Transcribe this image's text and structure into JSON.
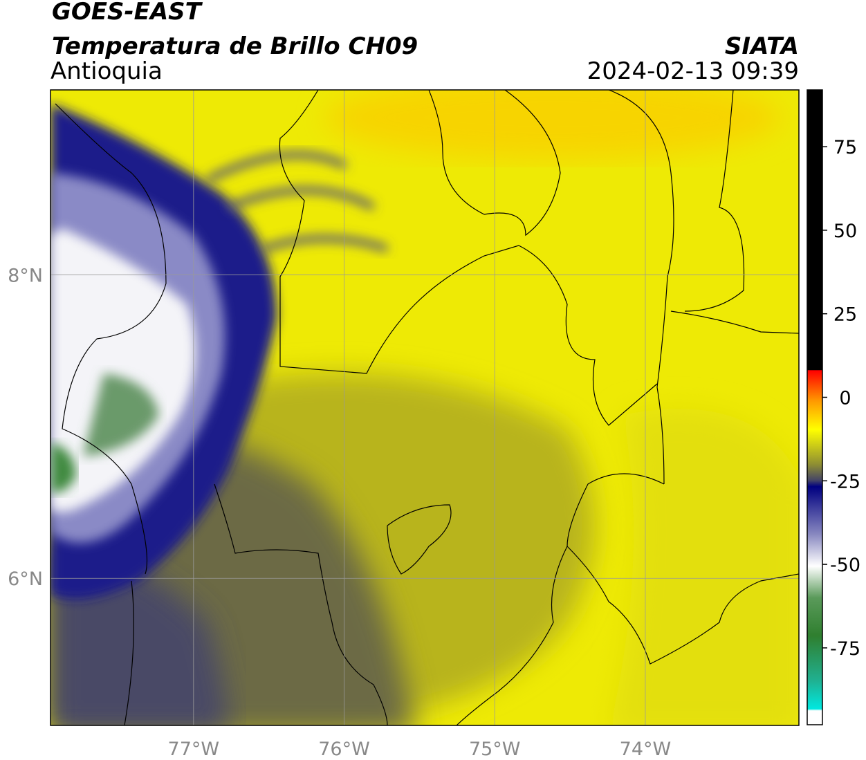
{
  "header": {
    "title": "GOES-EAST",
    "subtitle": "Temperatura de Brillo CH09",
    "source": "SIATA",
    "region": "Antioquia",
    "datetime": "2024-02-13 09:39"
  },
  "map": {
    "xlim": [
      -77.95,
      -72.98
    ],
    "ylim": [
      5.03,
      9.22
    ],
    "xticks": [
      {
        "value": -77,
        "label": "77°W"
      },
      {
        "value": -76,
        "label": "76°W"
      },
      {
        "value": -75,
        "label": "75°W"
      },
      {
        "value": -74,
        "label": "74°W"
      }
    ],
    "yticks": [
      {
        "value": 6,
        "label": "6°N"
      },
      {
        "value": 8,
        "label": "8°N"
      }
    ],
    "grid": true
  },
  "colorbar": {
    "range": [
      -98,
      92
    ],
    "ticks": [
      -75,
      -50,
      -25,
      0,
      25,
      50,
      75
    ]
  }
}
